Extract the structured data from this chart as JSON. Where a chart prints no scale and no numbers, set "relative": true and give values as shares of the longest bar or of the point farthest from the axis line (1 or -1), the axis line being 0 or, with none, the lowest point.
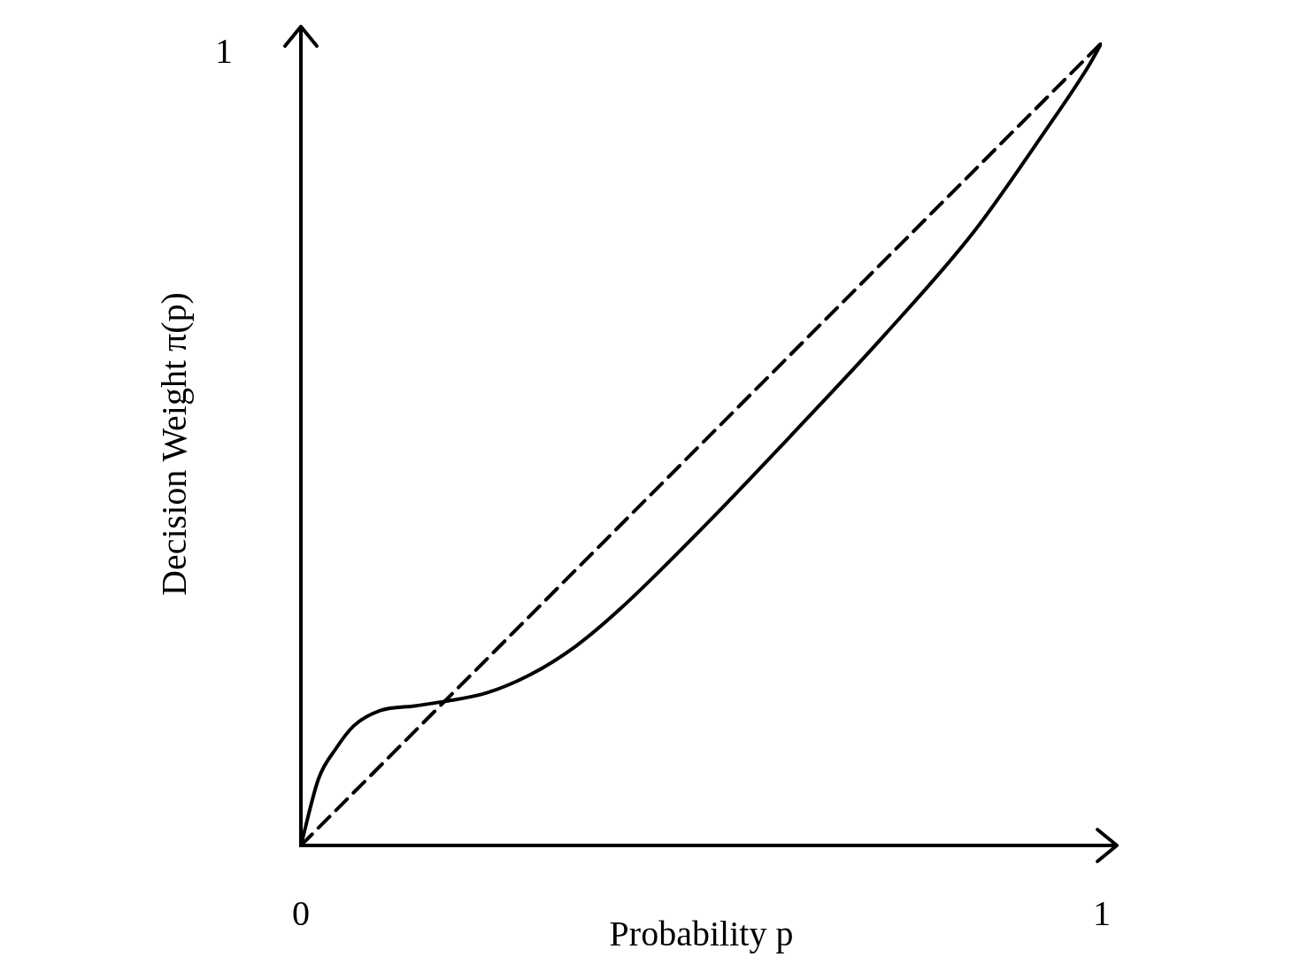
{
  "chart_data": {
    "type": "line",
    "xlabel": "Probability p",
    "ylabel": "Decision Weight π(p)",
    "xlim": [
      0,
      1
    ],
    "relative": true,
    "xticks": [
      0,
      1
    ],
    "annotations": [
      "1"
    ],
    "grid": false,
    "legend": false,
    "marker": "none",
    "series": [
      {
        "color": "#000000",
        "line_style": "solid",
        "x": [
          0,
          0.022,
          0.044,
          0.066,
          0.099,
          0.144,
          0.177,
          0.232,
          0.287,
          0.343,
          0.398,
          0.508,
          0.619,
          0.729,
          0.84,
          0.928,
          0.983,
          1
        ],
        "values": [
          0,
          0.083,
          0.121,
          0.149,
          0.168,
          0.174,
          0.179,
          0.19,
          0.213,
          0.248,
          0.294,
          0.402,
          0.518,
          0.636,
          0.764,
          0.888,
          0.97,
          1
        ]
      },
      {
        "color": "#000000",
        "line_style": "dashed",
        "x": [
          0,
          1
        ],
        "values": [
          0,
          1
        ]
      }
    ]
  }
}
